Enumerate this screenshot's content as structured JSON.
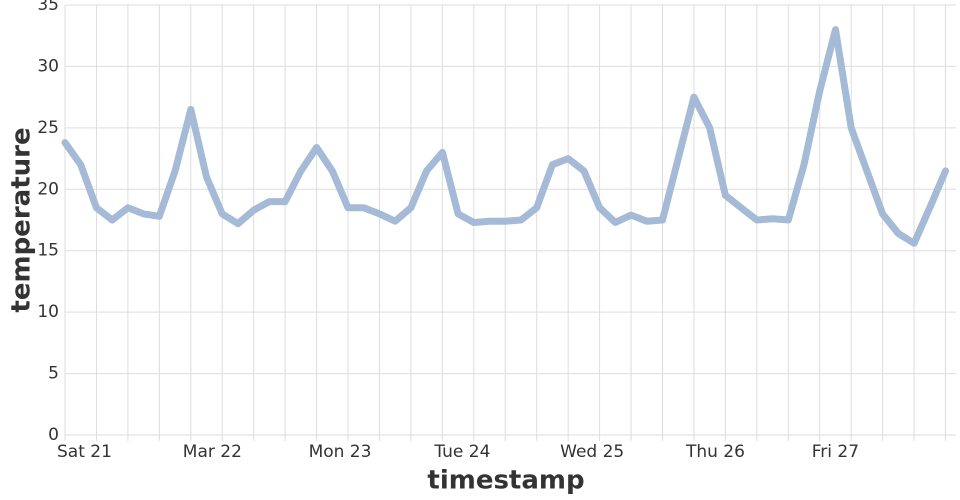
{
  "chart_data": {
    "type": "line",
    "x_label": "timestamp",
    "y_label": "temperature",
    "x": [
      0,
      3,
      6,
      9,
      12,
      15,
      18,
      21,
      24,
      27,
      30,
      33,
      36,
      39,
      42,
      45,
      48,
      51,
      54,
      57,
      60,
      63,
      66,
      69,
      72,
      75,
      78,
      81,
      84,
      87,
      90,
      93,
      96,
      99,
      102,
      105,
      108,
      111,
      114,
      117,
      120,
      123,
      126,
      129,
      132,
      135,
      138,
      141,
      144,
      147,
      150,
      153,
      156,
      159,
      162,
      165,
      168
    ],
    "series": [
      {
        "name": "temperature",
        "color": "#a5bad6",
        "values": [
          23.8,
          22,
          18.5,
          17.5,
          18.5,
          18,
          17.8,
          21.5,
          26.5,
          21,
          18,
          17.2,
          18.3,
          19,
          19,
          21.5,
          23.4,
          21.5,
          18.5,
          18.5,
          18,
          17.4,
          18.5,
          21.5,
          23,
          18,
          17.3,
          17.4,
          17.4,
          17.5,
          18.5,
          22,
          22.5,
          21.5,
          18.5,
          17.3,
          17.9,
          17.4,
          17.5,
          22.5,
          27.5,
          25,
          19.5,
          18.5,
          17.5,
          17.6,
          17.5,
          22,
          28,
          33,
          25,
          21.5,
          18,
          16.4,
          15.6,
          18.5,
          21.5
        ]
      }
    ],
    "xlim": [
      0,
      170
    ],
    "xticks": [
      {
        "value": 0,
        "label": "Sat 21"
      },
      {
        "value": 24,
        "label": "Mar 22"
      },
      {
        "value": 48,
        "label": "Mon 23"
      },
      {
        "value": 72,
        "label": "Tue 24"
      },
      {
        "value": 96,
        "label": "Wed 25"
      },
      {
        "value": 120,
        "label": "Thu 26"
      },
      {
        "value": 144,
        "label": "Fri 27"
      }
    ],
    "x_minor_ticks": [
      6,
      12,
      18,
      30,
      36,
      42,
      54,
      60,
      66,
      78,
      84,
      90,
      102,
      108,
      114,
      126,
      132,
      138,
      150,
      156,
      162,
      168
    ],
    "ylim": [
      0,
      35
    ],
    "yticks": [
      0,
      5,
      10,
      15,
      20,
      25,
      30,
      35
    ],
    "grid": true
  }
}
